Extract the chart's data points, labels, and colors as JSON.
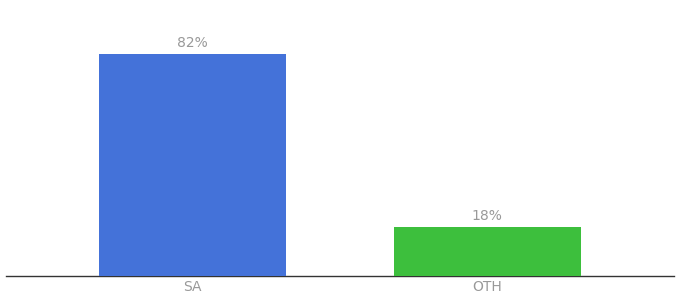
{
  "categories": [
    "SA",
    "OTH"
  ],
  "values": [
    82,
    18
  ],
  "bar_colors": [
    "#4472d9",
    "#3dbf3d"
  ],
  "label_texts": [
    "82%",
    "18%"
  ],
  "background_color": "#ffffff",
  "text_color": "#999999",
  "axis_line_color": "#333333",
  "label_fontsize": 10,
  "tick_fontsize": 10,
  "ylim": [
    0,
    100
  ],
  "bar_width": 0.28,
  "x_positions": [
    0.28,
    0.72
  ],
  "xlim": [
    0.0,
    1.0
  ],
  "figsize": [
    6.8,
    3.0
  ],
  "dpi": 100
}
